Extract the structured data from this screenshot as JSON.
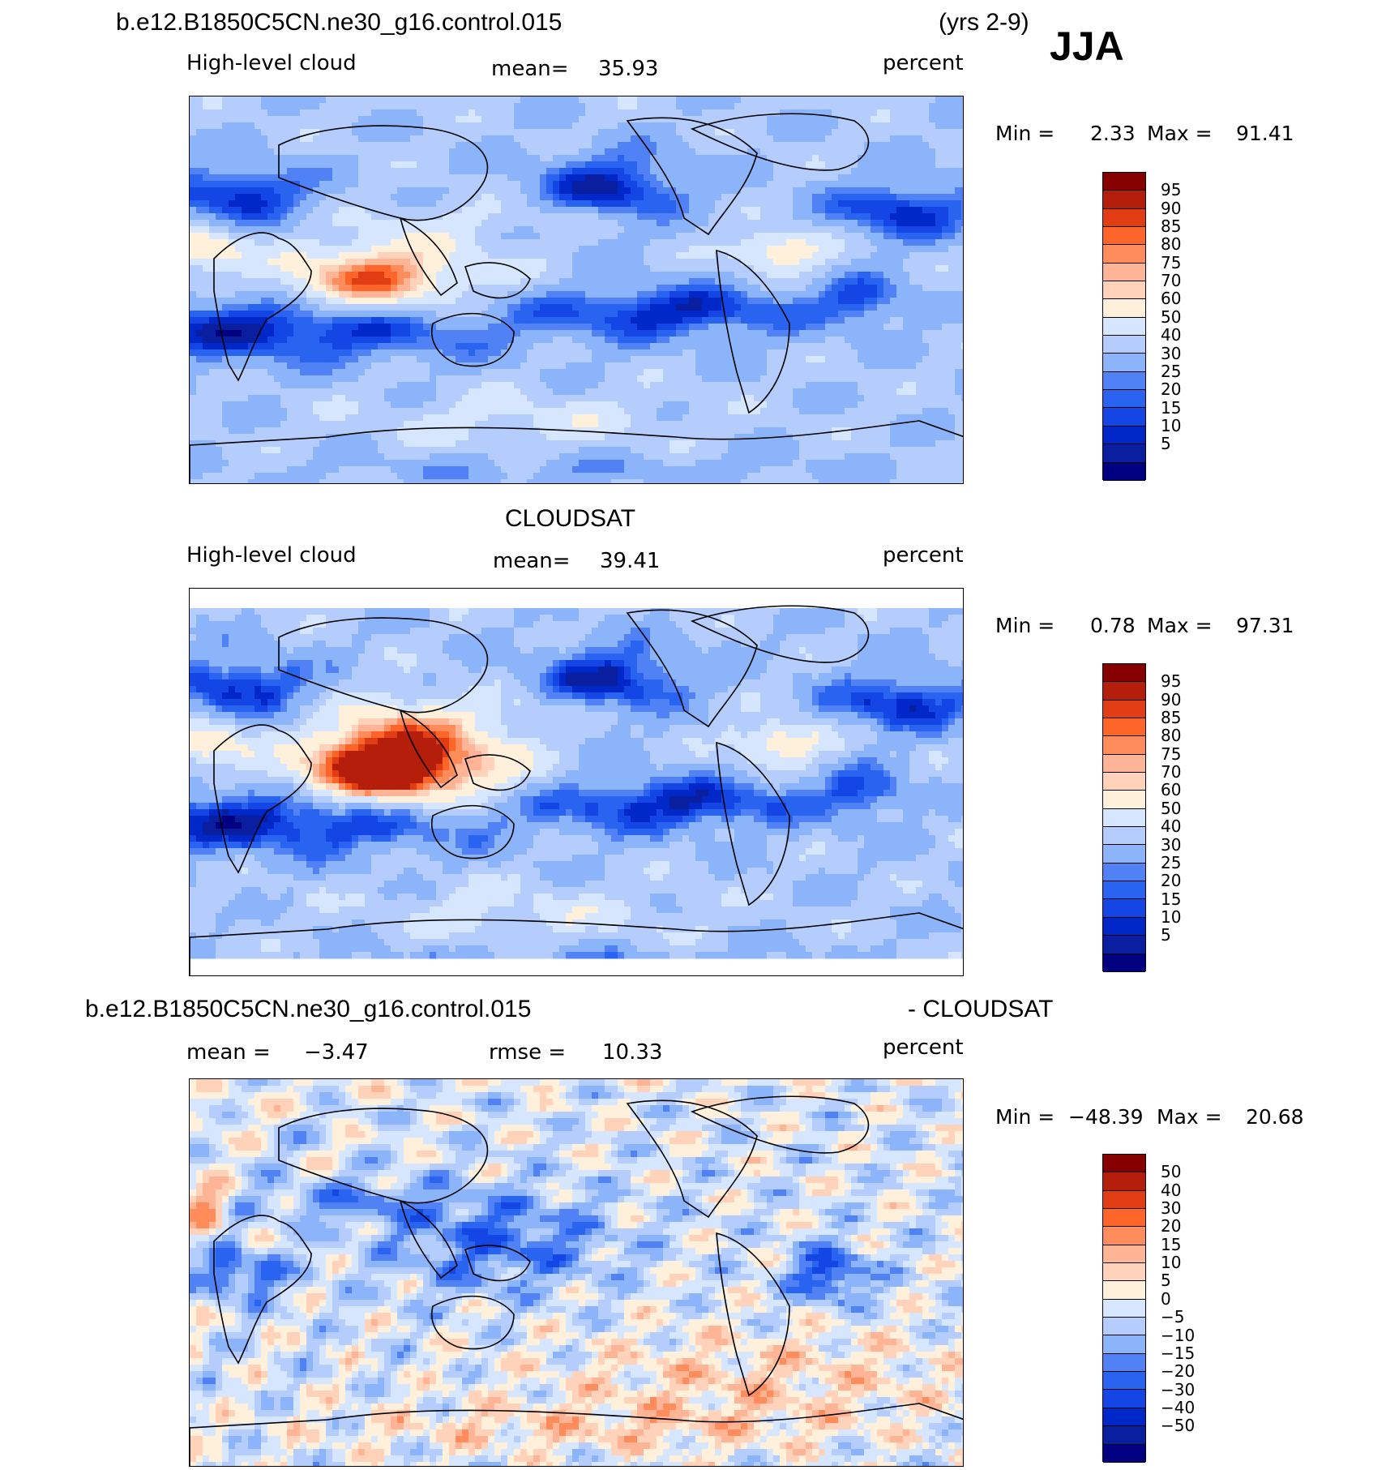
{
  "header": {
    "case_name": "b.e12.B1850C5CN.ne30_g16.control.015",
    "years": "(yrs 2-9)",
    "season": "JJA"
  },
  "colors": {
    "cloud_scale": [
      "#000080",
      "#0a1ea0",
      "#0028c8",
      "#1446e6",
      "#2864f0",
      "#5082f5",
      "#8cb4fa",
      "#b4cdfd",
      "#d7e6ff",
      "#fff0dc",
      "#ffd2b9",
      "#ffb496",
      "#ff8c5a",
      "#ff6428",
      "#e13c14",
      "#b41e0a",
      "#870000"
    ],
    "diff_scale": [
      "#000080",
      "#0a1ea0",
      "#0028c8",
      "#1446e6",
      "#2864f0",
      "#5082f5",
      "#8cb4fa",
      "#b4cdfd",
      "#d7e6ff",
      "#fff0dc",
      "#ffd2b9",
      "#ffb496",
      "#ff8c5a",
      "#ff6428",
      "#e13c14",
      "#b41e0a",
      "#870000"
    ]
  },
  "chart_data": [
    {
      "type": "heatmap",
      "title": "b.e12.B1850C5CN.ne30_g16.control.015",
      "variable": "High-level cloud",
      "mean_label": "mean=",
      "mean": "35.93",
      "units": "percent",
      "min_label": "Min =",
      "min": "2.33",
      "max_label": "Max =",
      "max": "91.41",
      "colorbar_levels": [
        "95",
        "90",
        "85",
        "80",
        "75",
        "70",
        "60",
        "50",
        "40",
        "30",
        "25",
        "20",
        "15",
        "10",
        "5"
      ]
    },
    {
      "type": "heatmap",
      "title": "CLOUDSAT",
      "variable": "High-level cloud",
      "mean_label": "mean=",
      "mean": "39.41",
      "units": "percent",
      "min_label": "Min =",
      "min": "0.78",
      "max_label": "Max =",
      "max": "97.31",
      "colorbar_levels": [
        "95",
        "90",
        "85",
        "80",
        "75",
        "70",
        "60",
        "50",
        "40",
        "30",
        "25",
        "20",
        "15",
        "10",
        "5"
      ]
    },
    {
      "type": "heatmap",
      "title_left": "b.e12.B1850C5CN.ne30_g16.control.015",
      "title_right": "- CLOUDSAT",
      "mean_label": "mean =",
      "mean": "−3.47",
      "rmse_label": "rmse =",
      "rmse": "10.33",
      "units": "percent",
      "min_label": "Min =",
      "min": "−48.39",
      "max_label": "Max =",
      "max": "20.68",
      "colorbar_levels": [
        "50",
        "40",
        "30",
        "20",
        "15",
        "10",
        "5",
        "0",
        "−5",
        "−10",
        "−15",
        "−20",
        "−30",
        "−40",
        "−50"
      ]
    }
  ]
}
